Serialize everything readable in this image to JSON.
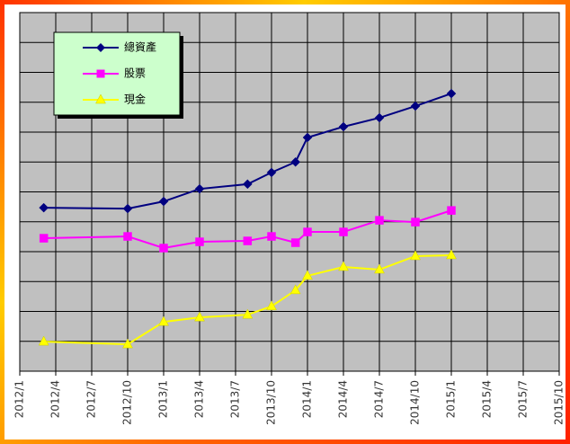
{
  "chart_data": {
    "type": "line",
    "xlim": [
      "2012/1",
      "2015/10"
    ],
    "xticks": [
      "2012/1",
      "2012/4",
      "2012/7",
      "2012/10",
      "2013/1",
      "2013/4",
      "2013/7",
      "2013/10",
      "2014/1",
      "2014/4",
      "2014/7",
      "2014/10",
      "2015/1",
      "2015/4",
      "2015/7",
      "2015/10"
    ],
    "ylim": [
      0,
      12
    ],
    "yticks": [
      0,
      1,
      2,
      3,
      4,
      5,
      6,
      7,
      8,
      9,
      10,
      11,
      12
    ],
    "ytick_labels": false,
    "grid": true,
    "legend": "upper-left",
    "x": [
      "2012/3",
      "2012/10",
      "2013/1",
      "2013/4",
      "2013/8",
      "2013/10",
      "2013/12",
      "2014/1",
      "2014/4",
      "2014/7",
      "2014/10",
      "2015/1"
    ],
    "series": [
      {
        "name": "總資產",
        "color": "#000080",
        "marker": "diamond",
        "values": [
          5.47,
          5.44,
          5.68,
          6.1,
          6.26,
          6.65,
          7.0,
          7.82,
          8.18,
          8.48,
          8.87,
          9.29
        ]
      },
      {
        "name": "股票",
        "color": "#ff00ff",
        "marker": "square",
        "values": [
          4.45,
          4.51,
          4.12,
          4.33,
          4.36,
          4.51,
          4.3,
          4.66,
          4.66,
          5.05,
          4.99,
          5.38
        ]
      },
      {
        "name": "現金",
        "color": "#ffff00",
        "marker": "triangle",
        "values": [
          0.99,
          0.9,
          1.65,
          1.8,
          1.89,
          2.17,
          2.71,
          3.19,
          3.49,
          3.4,
          3.85,
          3.88
        ]
      }
    ]
  }
}
